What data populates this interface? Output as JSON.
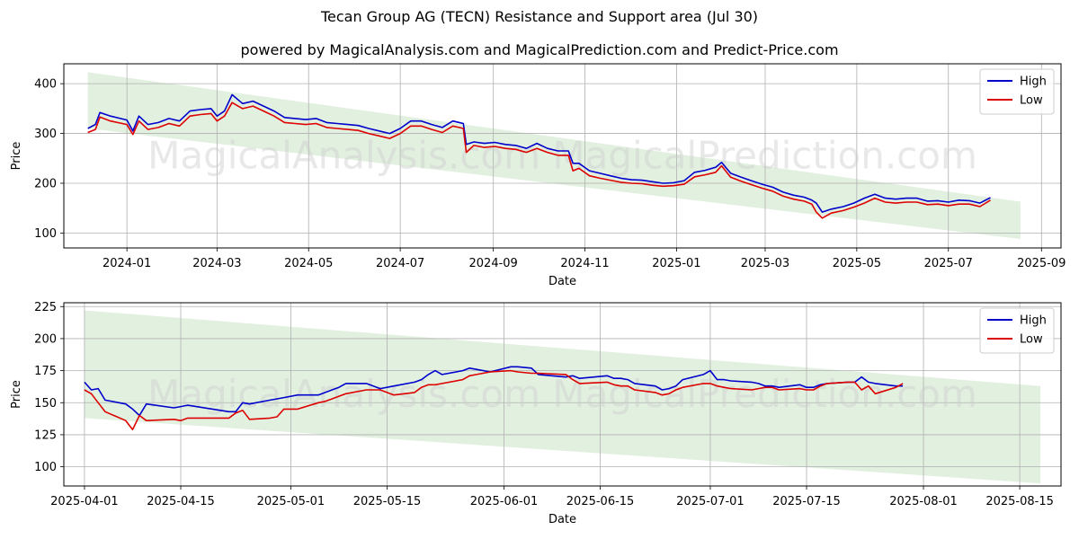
{
  "title": "Tecan Group AG (TECN) Resistance and Support area (Jul 30)",
  "subtitle": "powered by MagicalAnalysis.com and MagicalPrediction.com and Predict-Price.com",
  "watermark": "MagicalAnalysis.com    MagicalPrediction.com",
  "colors": {
    "high": "#0000cc",
    "low": "#dd0000",
    "band": "#d8ebd5",
    "grid": "#b0b0b0"
  },
  "chart_data": [
    {
      "type": "line",
      "panel": "top",
      "xlabel": "Date",
      "ylabel": "Price",
      "xlim": [
        "2023-11-20",
        "2025-09-14"
      ],
      "ylim": [
        70,
        440
      ],
      "yticks": [
        100,
        200,
        300,
        400
      ],
      "xticks": [
        "2024-01-01",
        "2024-03-01",
        "2024-05-01",
        "2024-07-01",
        "2024-09-01",
        "2024-11-01",
        "2025-01-01",
        "2025-03-01",
        "2025-05-01",
        "2025-07-01",
        "2025-09-01"
      ],
      "xtick_labels": [
        "2024-01",
        "2024-03",
        "2024-05",
        "2024-07",
        "2024-09",
        "2024-11",
        "2025-01",
        "2025-03",
        "2025-05",
        "2025-07",
        "2025-09"
      ],
      "grid": true,
      "legend": "top-right",
      "band": {
        "x": [
          "2023-12-06",
          "2025-08-18"
        ],
        "upper": [
          423,
          163
        ],
        "lower": [
          310,
          88
        ]
      },
      "series": [
        {
          "name": "High",
          "x": [
            "2023-12-06",
            "2023-12-11",
            "2023-12-14",
            "2023-12-21",
            "2024-01-01",
            "2024-01-05",
            "2024-01-09",
            "2024-01-15",
            "2024-01-22",
            "2024-01-29",
            "2024-02-05",
            "2024-02-12",
            "2024-02-19",
            "2024-02-26",
            "2024-03-01",
            "2024-03-06",
            "2024-03-11",
            "2024-03-18",
            "2024-03-25",
            "2024-04-01",
            "2024-04-08",
            "2024-04-15",
            "2024-04-22",
            "2024-04-29",
            "2024-05-06",
            "2024-05-13",
            "2024-05-20",
            "2024-05-27",
            "2024-06-03",
            "2024-06-10",
            "2024-06-17",
            "2024-06-24",
            "2024-07-01",
            "2024-07-08",
            "2024-07-15",
            "2024-07-22",
            "2024-07-29",
            "2024-08-05",
            "2024-08-12",
            "2024-08-14",
            "2024-08-19",
            "2024-08-26",
            "2024-09-02",
            "2024-09-09",
            "2024-09-16",
            "2024-09-23",
            "2024-09-30",
            "2024-10-07",
            "2024-10-14",
            "2024-10-21",
            "2024-10-24",
            "2024-10-28",
            "2024-11-04",
            "2024-11-11",
            "2024-11-18",
            "2024-11-25",
            "2024-12-02",
            "2024-12-09",
            "2024-12-16",
            "2024-12-23",
            "2024-12-30",
            "2025-01-06",
            "2025-01-13",
            "2025-01-20",
            "2025-01-27",
            "2025-01-31",
            "2025-02-06",
            "2025-02-13",
            "2025-02-20",
            "2025-02-27",
            "2025-03-06",
            "2025-03-13",
            "2025-03-20",
            "2025-03-27",
            "2025-04-01",
            "2025-04-04",
            "2025-04-08",
            "2025-04-14",
            "2025-04-22",
            "2025-04-29",
            "2025-05-06",
            "2025-05-13",
            "2025-05-20",
            "2025-05-27",
            "2025-06-03",
            "2025-06-10",
            "2025-06-17",
            "2025-06-24",
            "2025-07-01",
            "2025-07-08",
            "2025-07-15",
            "2025-07-22",
            "2025-07-29"
          ],
          "values": [
            310,
            318,
            342,
            335,
            327,
            305,
            335,
            318,
            322,
            330,
            325,
            345,
            348,
            350,
            335,
            345,
            378,
            360,
            365,
            355,
            345,
            332,
            330,
            328,
            330,
            322,
            320,
            318,
            316,
            310,
            305,
            300,
            310,
            325,
            325,
            318,
            312,
            325,
            320,
            278,
            283,
            280,
            282,
            278,
            276,
            270,
            280,
            270,
            265,
            265,
            240,
            240,
            225,
            220,
            215,
            210,
            207,
            206,
            203,
            200,
            201,
            205,
            222,
            226,
            232,
            242,
            220,
            212,
            205,
            198,
            192,
            182,
            176,
            172,
            166,
            160,
            142,
            148,
            153,
            160,
            170,
            178,
            170,
            168,
            170,
            170,
            164,
            165,
            162,
            166,
            165,
            160,
            171
          ]
        },
        {
          "name": "Low",
          "x": [
            "2023-12-06",
            "2023-12-11",
            "2023-12-14",
            "2023-12-21",
            "2024-01-01",
            "2024-01-05",
            "2024-01-09",
            "2024-01-15",
            "2024-01-22",
            "2024-01-29",
            "2024-02-05",
            "2024-02-12",
            "2024-02-19",
            "2024-02-26",
            "2024-03-01",
            "2024-03-06",
            "2024-03-11",
            "2024-03-18",
            "2024-03-25",
            "2024-04-01",
            "2024-04-08",
            "2024-04-15",
            "2024-04-22",
            "2024-04-29",
            "2024-05-06",
            "2024-05-13",
            "2024-05-20",
            "2024-05-27",
            "2024-06-03",
            "2024-06-10",
            "2024-06-17",
            "2024-06-24",
            "2024-07-01",
            "2024-07-08",
            "2024-07-15",
            "2024-07-22",
            "2024-07-29",
            "2024-08-05",
            "2024-08-12",
            "2024-08-14",
            "2024-08-19",
            "2024-08-26",
            "2024-09-02",
            "2024-09-09",
            "2024-09-16",
            "2024-09-23",
            "2024-09-30",
            "2024-10-07",
            "2024-10-14",
            "2024-10-21",
            "2024-10-24",
            "2024-10-28",
            "2024-11-04",
            "2024-11-11",
            "2024-11-18",
            "2024-11-25",
            "2024-12-02",
            "2024-12-09",
            "2024-12-16",
            "2024-12-23",
            "2024-12-30",
            "2025-01-06",
            "2025-01-13",
            "2025-01-20",
            "2025-01-27",
            "2025-01-31",
            "2025-02-06",
            "2025-02-13",
            "2025-02-20",
            "2025-02-27",
            "2025-03-06",
            "2025-03-13",
            "2025-03-20",
            "2025-03-27",
            "2025-04-01",
            "2025-04-04",
            "2025-04-08",
            "2025-04-14",
            "2025-04-22",
            "2025-04-29",
            "2025-05-06",
            "2025-05-13",
            "2025-05-20",
            "2025-05-27",
            "2025-06-03",
            "2025-06-10",
            "2025-06-17",
            "2025-06-24",
            "2025-07-01",
            "2025-07-08",
            "2025-07-15",
            "2025-07-22",
            "2025-07-29"
          ],
          "values": [
            302,
            308,
            333,
            325,
            318,
            298,
            325,
            308,
            312,
            320,
            315,
            335,
            338,
            340,
            325,
            335,
            362,
            350,
            355,
            345,
            335,
            322,
            320,
            318,
            320,
            312,
            310,
            308,
            306,
            300,
            295,
            290,
            300,
            315,
            315,
            308,
            302,
            315,
            310,
            262,
            276,
            272,
            274,
            270,
            268,
            262,
            270,
            262,
            256,
            256,
            225,
            230,
            215,
            210,
            206,
            202,
            200,
            199,
            196,
            194,
            195,
            198,
            213,
            217,
            222,
            235,
            212,
            204,
            197,
            190,
            184,
            174,
            168,
            164,
            158,
            142,
            130,
            140,
            145,
            152,
            160,
            170,
            162,
            160,
            162,
            162,
            157,
            158,
            155,
            158,
            158,
            153,
            166
          ]
        }
      ]
    },
    {
      "type": "line",
      "panel": "bottom",
      "xlabel": "Date",
      "ylabel": "Price",
      "xlim": [
        "2025-03-29",
        "2025-08-21"
      ],
      "ylim": [
        85,
        228
      ],
      "yticks": [
        100,
        125,
        150,
        175,
        200,
        225
      ],
      "xticks": [
        "2025-04-01",
        "2025-04-15",
        "2025-05-01",
        "2025-05-15",
        "2025-06-01",
        "2025-06-15",
        "2025-07-01",
        "2025-07-15",
        "2025-08-01",
        "2025-08-15"
      ],
      "xtick_labels": [
        "2025-04-01",
        "2025-04-15",
        "2025-05-01",
        "2025-05-15",
        "2025-06-01",
        "2025-06-15",
        "2025-07-01",
        "2025-07-15",
        "2025-08-01",
        "2025-08-15"
      ],
      "grid": true,
      "legend": "top-right",
      "band": {
        "x": [
          "2025-04-01",
          "2025-08-18"
        ],
        "upper": [
          222,
          163
        ],
        "lower": [
          138,
          87
        ]
      },
      "series": [
        {
          "name": "High",
          "x": [
            "2025-04-01",
            "2025-04-02",
            "2025-04-03",
            "2025-04-04",
            "2025-04-07",
            "2025-04-08",
            "2025-04-09",
            "2025-04-10",
            "2025-04-14",
            "2025-04-15",
            "2025-04-16",
            "2025-04-22",
            "2025-04-23",
            "2025-04-24",
            "2025-04-25",
            "2025-04-28",
            "2025-04-29",
            "2025-04-30",
            "2025-05-02",
            "2025-05-05",
            "2025-05-06",
            "2025-05-07",
            "2025-05-08",
            "2025-05-09",
            "2025-05-12",
            "2025-05-13",
            "2025-05-14",
            "2025-05-16",
            "2025-05-19",
            "2025-05-20",
            "2025-05-21",
            "2025-05-22",
            "2025-05-23",
            "2025-05-26",
            "2025-05-27",
            "2025-05-28",
            "2025-05-30",
            "2025-06-02",
            "2025-06-03",
            "2025-06-05",
            "2025-06-06",
            "2025-06-10",
            "2025-06-11",
            "2025-06-12",
            "2025-06-16",
            "2025-06-17",
            "2025-06-18",
            "2025-06-19",
            "2025-06-20",
            "2025-06-23",
            "2025-06-24",
            "2025-06-25",
            "2025-06-26",
            "2025-06-27",
            "2025-06-30",
            "2025-07-01",
            "2025-07-02",
            "2025-07-03",
            "2025-07-04",
            "2025-07-07",
            "2025-07-08",
            "2025-07-09",
            "2025-07-10",
            "2025-07-11",
            "2025-07-14",
            "2025-07-15",
            "2025-07-16",
            "2025-07-17",
            "2025-07-18",
            "2025-07-21",
            "2025-07-22",
            "2025-07-23",
            "2025-07-24",
            "2025-07-25",
            "2025-07-28",
            "2025-07-29"
          ],
          "values": [
            166,
            160,
            161,
            152,
            149,
            145,
            140,
            149,
            146,
            147,
            148,
            143,
            143,
            150,
            149,
            152,
            153,
            154,
            156,
            156,
            158,
            160,
            162,
            165,
            165,
            163,
            161,
            163,
            166,
            168,
            172,
            175,
            172,
            175,
            177,
            176,
            174,
            178,
            178,
            177,
            172,
            170,
            171,
            169,
            171,
            169,
            169,
            168,
            165,
            163,
            160,
            161,
            163,
            168,
            172,
            175,
            168,
            168,
            167,
            166,
            165,
            163,
            163,
            162,
            164,
            162,
            162,
            164,
            165,
            166,
            166,
            170,
            166,
            165,
            163,
            163
          ]
        },
        {
          "name": "Low",
          "x": [
            "2025-04-01",
            "2025-04-02",
            "2025-04-03",
            "2025-04-04",
            "2025-04-07",
            "2025-04-08",
            "2025-04-09",
            "2025-04-10",
            "2025-04-14",
            "2025-04-15",
            "2025-04-16",
            "2025-04-22",
            "2025-04-23",
            "2025-04-24",
            "2025-04-25",
            "2025-04-28",
            "2025-04-29",
            "2025-04-30",
            "2025-05-02",
            "2025-05-05",
            "2025-05-06",
            "2025-05-07",
            "2025-05-08",
            "2025-05-09",
            "2025-05-12",
            "2025-05-13",
            "2025-05-14",
            "2025-05-16",
            "2025-05-19",
            "2025-05-20",
            "2025-05-21",
            "2025-05-22",
            "2025-05-23",
            "2025-05-26",
            "2025-05-27",
            "2025-05-28",
            "2025-05-30",
            "2025-06-02",
            "2025-06-03",
            "2025-06-05",
            "2025-06-06",
            "2025-06-10",
            "2025-06-11",
            "2025-06-12",
            "2025-06-16",
            "2025-06-17",
            "2025-06-18",
            "2025-06-19",
            "2025-06-20",
            "2025-06-23",
            "2025-06-24",
            "2025-06-25",
            "2025-06-26",
            "2025-06-27",
            "2025-06-30",
            "2025-07-01",
            "2025-07-02",
            "2025-07-03",
            "2025-07-04",
            "2025-07-07",
            "2025-07-08",
            "2025-07-09",
            "2025-07-10",
            "2025-07-11",
            "2025-07-14",
            "2025-07-15",
            "2025-07-16",
            "2025-07-17",
            "2025-07-18",
            "2025-07-21",
            "2025-07-22",
            "2025-07-23",
            "2025-07-24",
            "2025-07-25",
            "2025-07-28",
            "2025-07-29"
          ],
          "values": [
            160,
            157,
            150,
            143,
            136,
            129,
            140,
            136,
            137,
            136,
            138,
            138,
            142,
            144,
            137,
            138,
            139,
            145,
            145,
            150,
            151,
            153,
            155,
            157,
            160,
            160,
            160,
            156,
            158,
            162,
            164,
            164,
            165,
            168,
            171,
            172,
            174,
            175,
            174,
            173,
            173,
            172,
            168,
            165,
            166,
            164,
            163,
            163,
            160,
            158,
            156,
            157,
            160,
            162,
            165,
            165,
            163,
            162,
            161,
            160,
            161,
            162,
            162,
            160,
            161,
            160,
            160,
            163,
            165,
            166,
            166,
            160,
            163,
            157,
            162,
            165
          ]
        }
      ]
    }
  ]
}
